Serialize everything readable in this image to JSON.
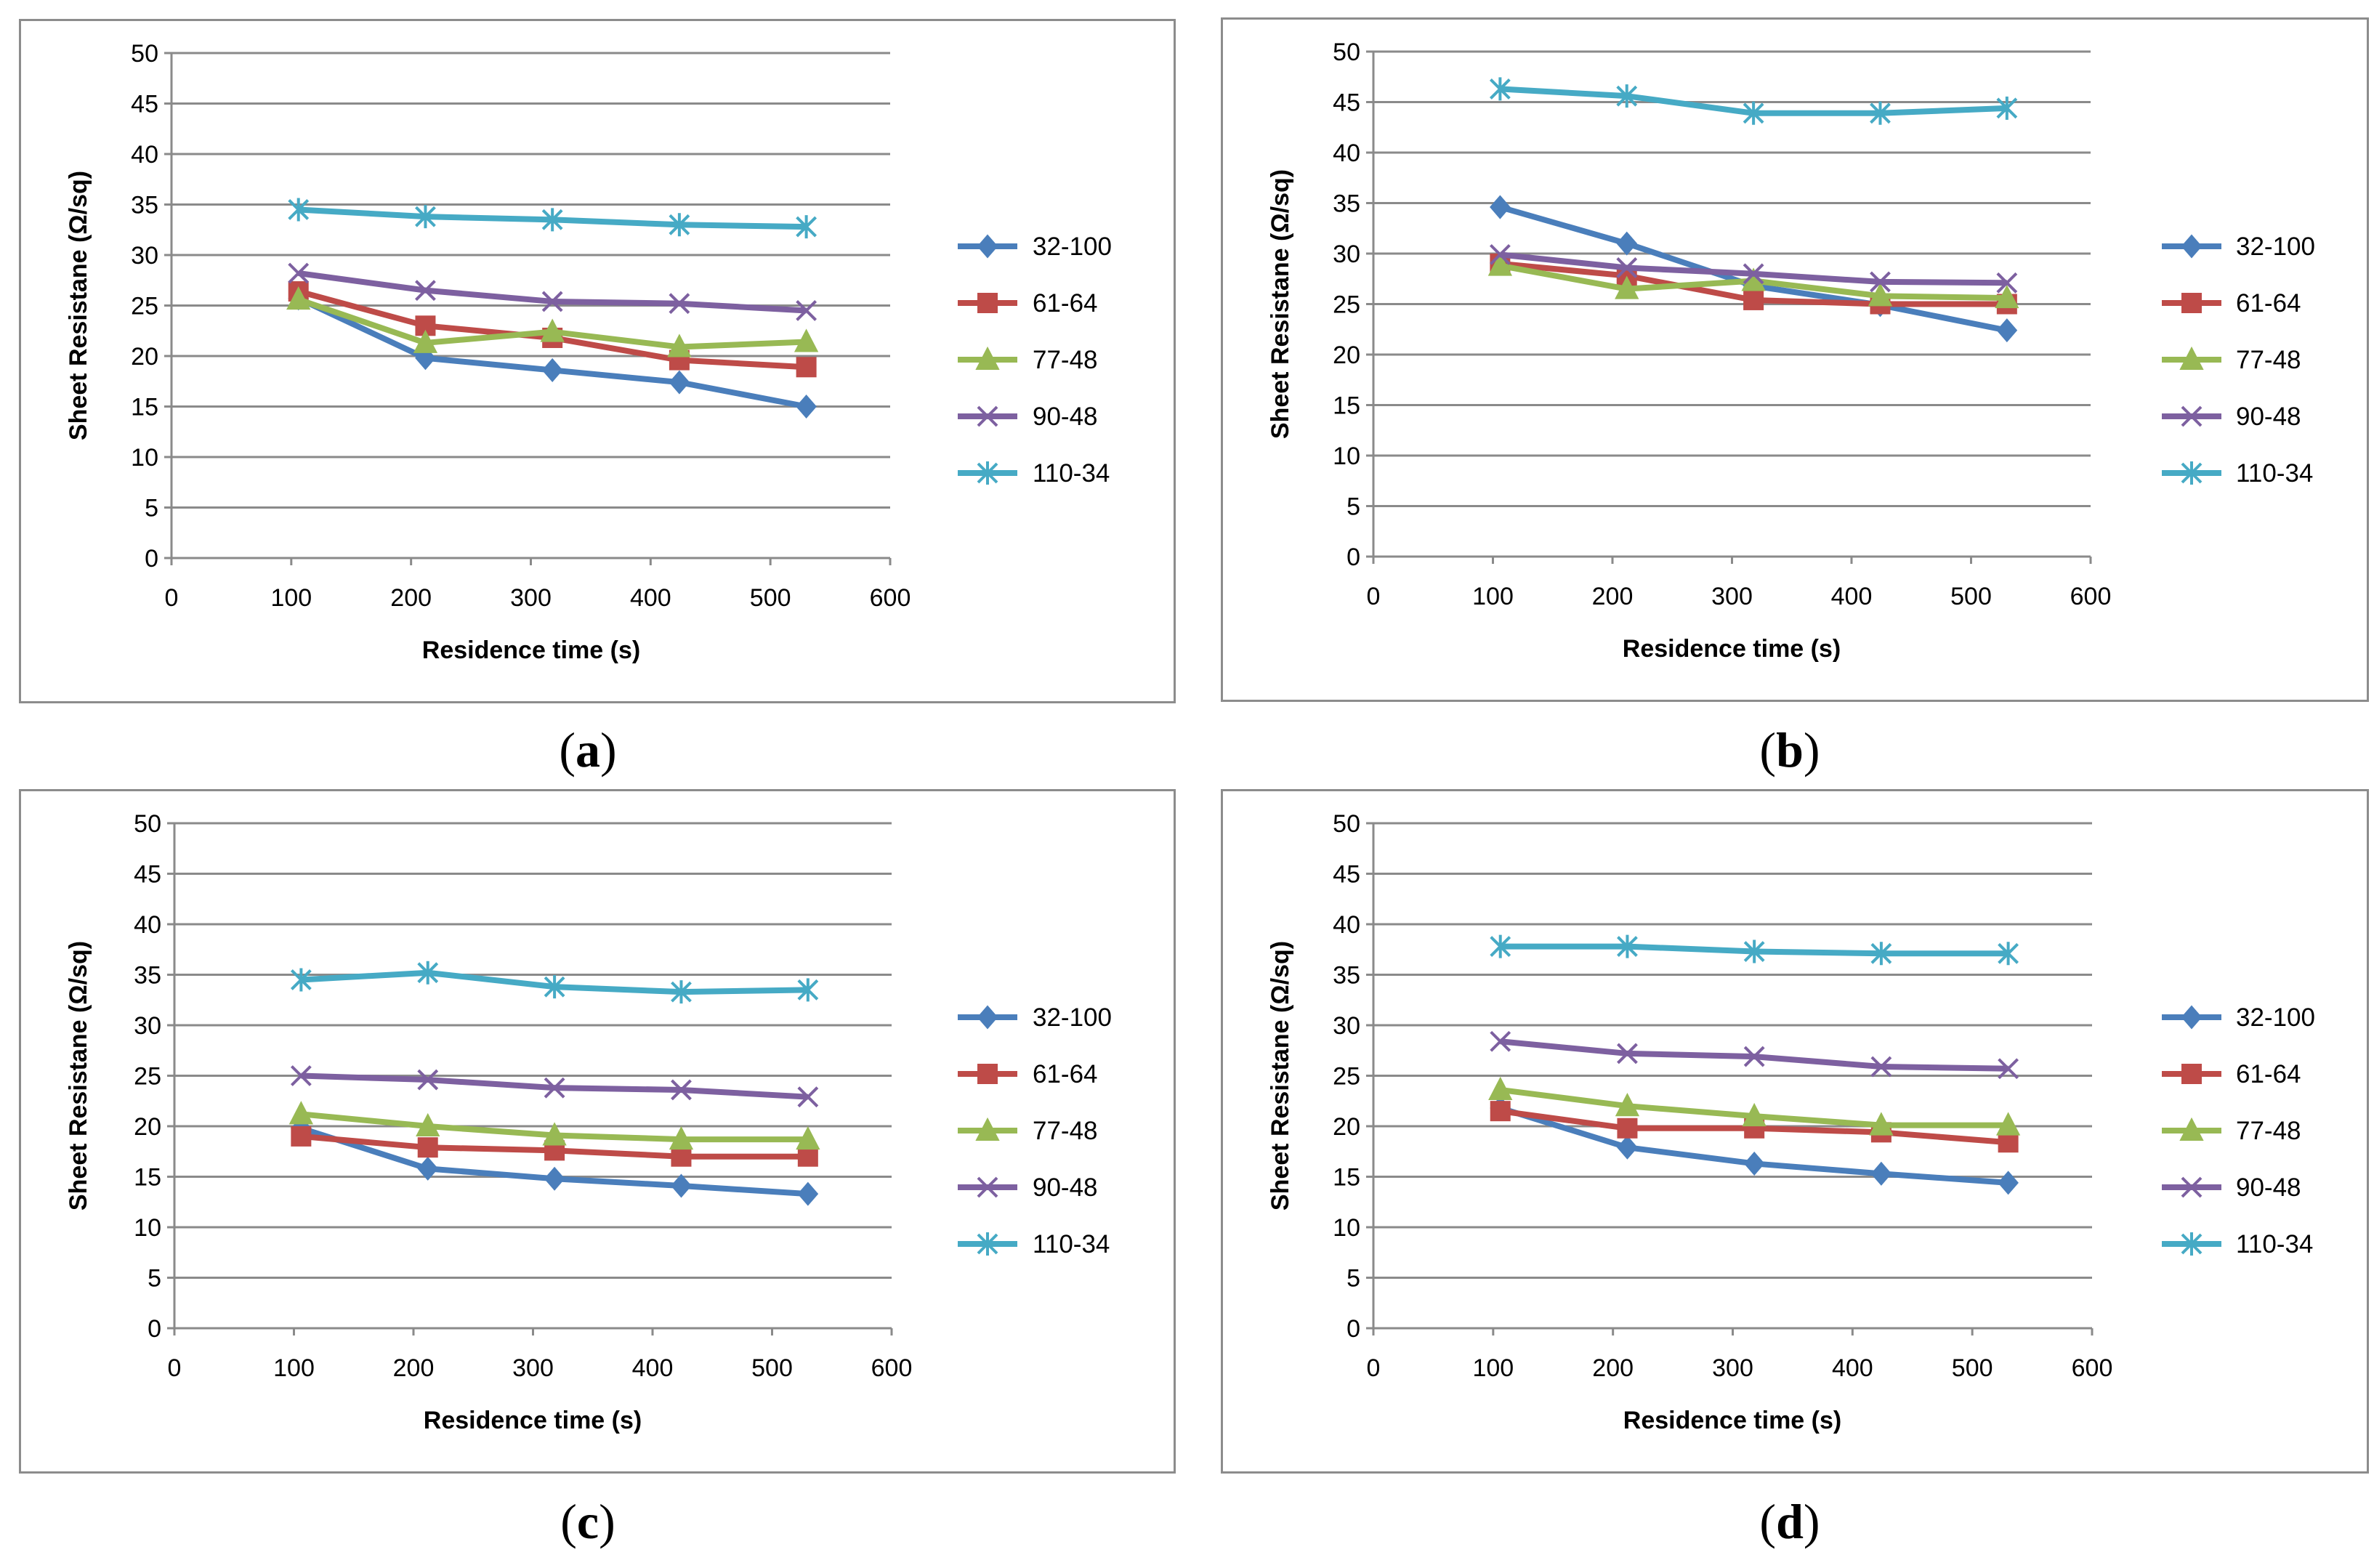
{
  "chart_data": [
    {
      "type": "line",
      "panel": "a",
      "caption_label": "a",
      "xlabel": "Residence time (s)",
      "ylabel": "Sheet Resistane (Ω/sq)",
      "xlim": [
        0,
        600
      ],
      "ylim": [
        0,
        50
      ],
      "xticks": [
        "0",
        "100",
        "200",
        "300",
        "400",
        "500",
        "600"
      ],
      "yticks": [
        "0",
        "5",
        "10",
        "15",
        "20",
        "25",
        "30",
        "35",
        "40",
        "45",
        "50"
      ],
      "x": [
        106,
        212,
        318,
        424,
        530
      ],
      "series": [
        {
          "name": "32-100",
          "values": [
            25.7,
            19.8,
            18.6,
            17.4,
            15.0
          ]
        },
        {
          "name": "61-64",
          "values": [
            26.4,
            23.0,
            21.8,
            19.6,
            18.9
          ]
        },
        {
          "name": "77-48",
          "values": [
            25.6,
            21.3,
            22.4,
            20.9,
            21.4
          ]
        },
        {
          "name": "90-48",
          "values": [
            28.2,
            26.5,
            25.4,
            25.2,
            24.5
          ]
        },
        {
          "name": "110-34",
          "values": [
            34.5,
            33.8,
            33.5,
            33.0,
            32.8
          ]
        }
      ]
    },
    {
      "type": "line",
      "panel": "b",
      "caption_label": "b",
      "xlabel": "Residence time (s)",
      "ylabel": "Sheet Resistane (Ω/sq)",
      "xlim": [
        0,
        600
      ],
      "ylim": [
        0,
        50
      ],
      "xticks": [
        "0",
        "100",
        "200",
        "300",
        "400",
        "500",
        "600"
      ],
      "yticks": [
        "0",
        "5",
        "10",
        "15",
        "20",
        "25",
        "30",
        "35",
        "40",
        "45",
        "50"
      ],
      "x": [
        106,
        212,
        318,
        424,
        530
      ],
      "series": [
        {
          "name": "32-100",
          "values": [
            34.6,
            31.0,
            26.8,
            24.9,
            22.4
          ]
        },
        {
          "name": "61-64",
          "values": [
            29.0,
            27.8,
            25.4,
            25.0,
            25.0
          ]
        },
        {
          "name": "77-48",
          "values": [
            28.8,
            26.5,
            27.3,
            25.8,
            25.6
          ]
        },
        {
          "name": "90-48",
          "values": [
            29.9,
            28.6,
            28.0,
            27.2,
            27.1
          ]
        },
        {
          "name": "110-34",
          "values": [
            46.3,
            45.6,
            43.9,
            43.9,
            44.4
          ]
        }
      ]
    },
    {
      "type": "line",
      "panel": "c",
      "caption_label": "c",
      "xlabel": "Residence time (s)",
      "ylabel": "Sheet Resistane (Ω/sq)",
      "xlim": [
        0,
        600
      ],
      "ylim": [
        0,
        50
      ],
      "xticks": [
        "0",
        "100",
        "200",
        "300",
        "400",
        "500",
        "600"
      ],
      "yticks": [
        "0",
        "5",
        "10",
        "15",
        "20",
        "25",
        "30",
        "35",
        "40",
        "45",
        "50"
      ],
      "x": [
        106,
        212,
        318,
        424,
        530
      ],
      "series": [
        {
          "name": "32-100",
          "values": [
            19.8,
            15.8,
            14.8,
            14.1,
            13.3
          ]
        },
        {
          "name": "61-64",
          "values": [
            19.0,
            17.9,
            17.6,
            17.0,
            17.0
          ]
        },
        {
          "name": "77-48",
          "values": [
            21.2,
            20.0,
            19.1,
            18.7,
            18.7
          ]
        },
        {
          "name": "90-48",
          "values": [
            25.0,
            24.6,
            23.8,
            23.6,
            22.9
          ]
        },
        {
          "name": "110-34",
          "values": [
            34.5,
            35.2,
            33.8,
            33.3,
            33.5
          ]
        }
      ]
    },
    {
      "type": "line",
      "panel": "d",
      "caption_label": "d",
      "xlabel": "Residence time (s)",
      "ylabel": "Sheet Resistane (Ω/sq)",
      "xlim": [
        0,
        600
      ],
      "ylim": [
        0,
        50
      ],
      "xticks": [
        "0",
        "100",
        "200",
        "300",
        "400",
        "500",
        "600"
      ],
      "yticks": [
        "0",
        "5",
        "10",
        "15",
        "20",
        "25",
        "30",
        "35",
        "40",
        "45",
        "50"
      ],
      "x": [
        106,
        212,
        318,
        424,
        530
      ],
      "series": [
        {
          "name": "32-100",
          "values": [
            21.8,
            17.9,
            16.3,
            15.3,
            14.4
          ]
        },
        {
          "name": "61-64",
          "values": [
            21.5,
            19.8,
            19.8,
            19.4,
            18.4
          ]
        },
        {
          "name": "77-48",
          "values": [
            23.6,
            22.0,
            21.0,
            20.1,
            20.1
          ]
        },
        {
          "name": "90-48",
          "values": [
            28.4,
            27.2,
            26.9,
            25.9,
            25.7
          ]
        },
        {
          "name": "110-34",
          "values": [
            37.8,
            37.8,
            37.3,
            37.1,
            37.1
          ]
        }
      ]
    }
  ],
  "colors": {
    "32-100": "#4a7ebb",
    "61-64": "#be4b48",
    "77-48": "#98b954",
    "90-48": "#7d60a0",
    "110-34": "#46aac5"
  },
  "markers": {
    "32-100": "diamond",
    "61-64": "square",
    "77-48": "triangle",
    "90-48": "x",
    "110-34": "star"
  }
}
